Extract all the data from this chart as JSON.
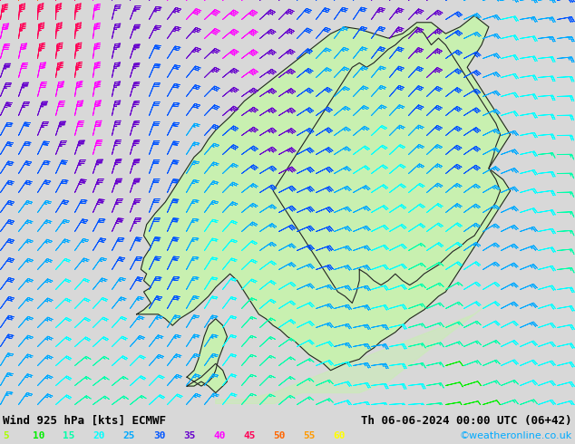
{
  "title_left": "Wind 925 hPa [kts] ECMWF",
  "title_right": "Th 06-06-2024 00:00 UTC (06+42)",
  "credit": "©weatheronline.co.uk",
  "legend_values": [
    5,
    10,
    15,
    20,
    25,
    30,
    35,
    40,
    45,
    50,
    55,
    60
  ],
  "legend_colors": [
    "#aaff00",
    "#00ee00",
    "#00ffaa",
    "#00ffff",
    "#00aaff",
    "#0055ff",
    "#6600cc",
    "#ff00ff",
    "#ff0055",
    "#ff6600",
    "#ff9900",
    "#ffff00"
  ],
  "bg_color": "#d8d8d8",
  "land_color": "#c8f0b0",
  "sea_color": "#d8d8d8",
  "coast_color": "#222222",
  "figsize": [
    6.34,
    4.9
  ],
  "dpi": 100,
  "font_color": "#000000",
  "title_fontsize": 9,
  "legend_fontsize": 8,
  "lon_min": -5,
  "lon_max": 35,
  "lat_min": 54,
  "lat_max": 72
}
